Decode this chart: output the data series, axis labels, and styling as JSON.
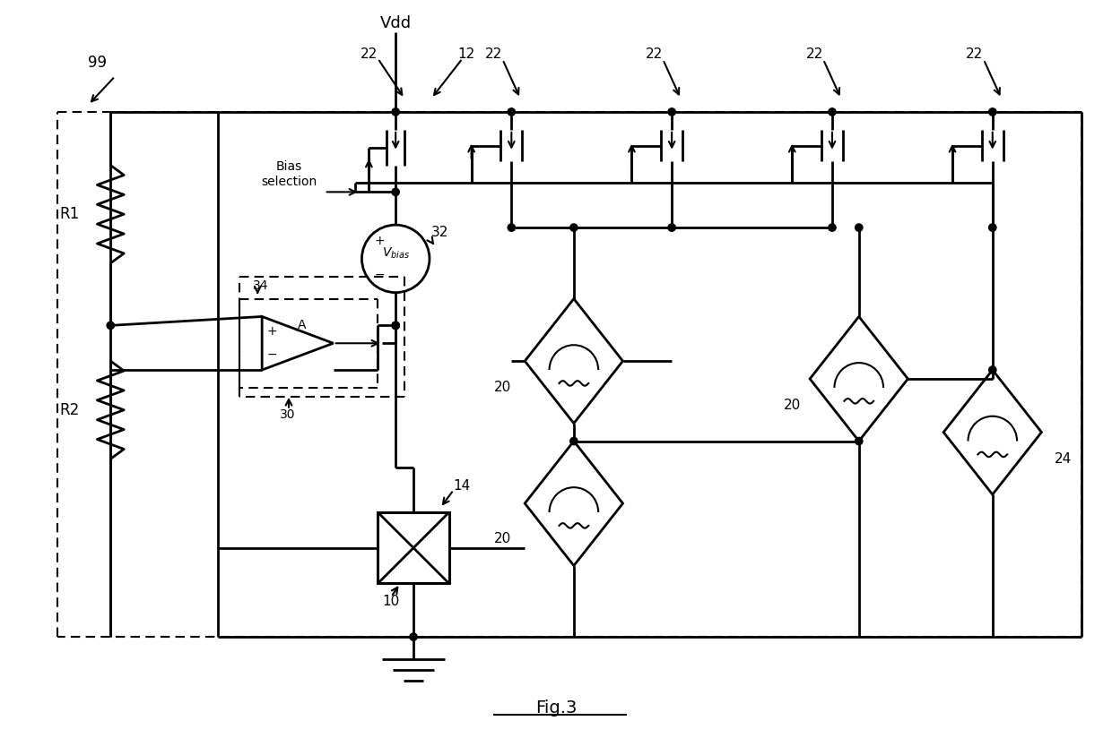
{
  "bg_color": "#ffffff",
  "lw_main": 2.0,
  "lw_thin": 1.5,
  "fig_caption": "Fig.3",
  "label_99": "99",
  "label_vdd": "Vdd",
  "label_12": "12",
  "label_22": "22",
  "label_32": "32",
  "label_34": "34",
  "label_30": "30",
  "label_14": "14",
  "label_10": "10",
  "label_20": "20",
  "label_24": "24",
  "label_R1": "R1",
  "label_R2": "R2",
  "label_bias": "Bias\nselection",
  "label_A": "A"
}
